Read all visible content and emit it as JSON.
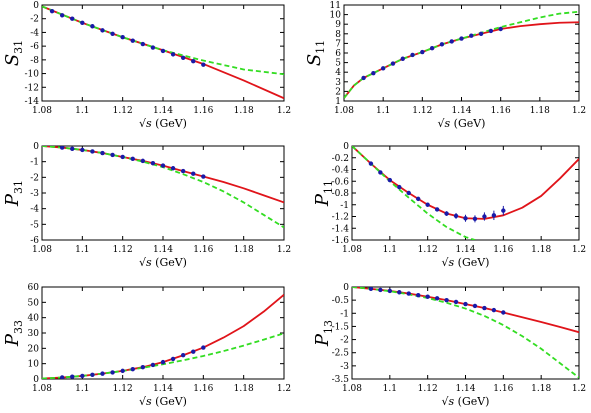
{
  "figure": {
    "xlabel_prefix": "√s",
    "xlabel_unit": "(GeV)",
    "series_styles": {
      "fit_solid": "#e0141a",
      "fit_dashed": "#33dd22",
      "data_points": "#1a1aa8"
    }
  },
  "chart_data": [
    {
      "type": "line",
      "panel": "S31",
      "ylabel_main": "S",
      "ylabel_sub": "31",
      "xlim": [
        1.08,
        1.2
      ],
      "ylim": [
        -14,
        0
      ],
      "xticks": [
        "1.08",
        "1.1",
        "1.12",
        "1.14",
        "1.16",
        "1.18",
        "1.2"
      ],
      "yticks": [
        "0",
        "-2",
        "-4",
        "-6",
        "-8",
        "-10",
        "-12",
        "-14"
      ],
      "series": [
        {
          "style": "solid",
          "color": "#e0141a",
          "x": [
            1.08,
            1.1,
            1.12,
            1.14,
            1.16,
            1.18,
            1.2
          ],
          "y": [
            -0.2,
            -2.6,
            -4.7,
            -6.6,
            -8.6,
            -11.0,
            -13.6
          ]
        },
        {
          "style": "dashed",
          "color": "#33dd22",
          "x": [
            1.08,
            1.1,
            1.12,
            1.14,
            1.16,
            1.18,
            1.2
          ],
          "y": [
            -0.2,
            -2.6,
            -4.7,
            -6.6,
            -8.1,
            -9.4,
            -10.1
          ]
        },
        {
          "style": "points",
          "color": "#1a1aa8",
          "x": [
            1.085,
            1.09,
            1.095,
            1.1,
            1.105,
            1.11,
            1.115,
            1.12,
            1.125,
            1.13,
            1.135,
            1.14,
            1.145,
            1.15,
            1.155,
            1.16
          ],
          "y": [
            -0.9,
            -1.5,
            -2.0,
            -2.6,
            -3.1,
            -3.7,
            -4.2,
            -4.7,
            -5.2,
            -5.7,
            -6.2,
            -6.7,
            -7.2,
            -7.7,
            -8.2,
            -8.7
          ],
          "err": [
            0.15,
            0.15,
            0.15,
            0.15,
            0.15,
            0.15,
            0.15,
            0.15,
            0.15,
            0.15,
            0.15,
            0.2,
            0.2,
            0.2,
            0.2,
            0.2
          ]
        }
      ]
    },
    {
      "type": "line",
      "panel": "S11",
      "ylabel_main": "S",
      "ylabel_sub": "11",
      "xlim": [
        1.08,
        1.2
      ],
      "ylim": [
        1,
        11
      ],
      "xticks": [
        "1.08",
        "1.1",
        "1.12",
        "1.14",
        "1.16",
        "1.18",
        "1.2"
      ],
      "yticks": [
        "1",
        "2",
        "3",
        "4",
        "5",
        "6",
        "7",
        "8",
        "9",
        "10",
        "11"
      ],
      "series": [
        {
          "style": "solid",
          "color": "#e0141a",
          "x": [
            1.08,
            1.085,
            1.09,
            1.1,
            1.11,
            1.12,
            1.13,
            1.14,
            1.15,
            1.16,
            1.17,
            1.18,
            1.19,
            1.2
          ],
          "y": [
            1.3,
            2.6,
            3.4,
            4.4,
            5.4,
            6.1,
            6.9,
            7.5,
            8.0,
            8.5,
            8.8,
            9.0,
            9.15,
            9.2
          ]
        },
        {
          "style": "dashed",
          "color": "#33dd22",
          "x": [
            1.08,
            1.085,
            1.09,
            1.1,
            1.11,
            1.12,
            1.13,
            1.14,
            1.15,
            1.16,
            1.17,
            1.18,
            1.19,
            1.2
          ],
          "y": [
            1.3,
            2.6,
            3.4,
            4.4,
            5.4,
            6.1,
            6.9,
            7.5,
            8.1,
            8.7,
            9.2,
            9.7,
            10.1,
            10.3
          ]
        },
        {
          "style": "points",
          "color": "#1a1aa8",
          "x": [
            1.09,
            1.095,
            1.1,
            1.105,
            1.11,
            1.115,
            1.12,
            1.125,
            1.13,
            1.135,
            1.14,
            1.145,
            1.15,
            1.155,
            1.16
          ],
          "y": [
            3.4,
            3.9,
            4.4,
            4.9,
            5.4,
            5.8,
            6.1,
            6.5,
            6.9,
            7.2,
            7.5,
            7.8,
            8.0,
            8.3,
            8.5
          ],
          "err": [
            0.12,
            0.12,
            0.12,
            0.12,
            0.12,
            0.12,
            0.12,
            0.12,
            0.12,
            0.12,
            0.12,
            0.12,
            0.12,
            0.12,
            0.12
          ]
        }
      ]
    },
    {
      "type": "line",
      "panel": "P31",
      "ylabel_main": "P",
      "ylabel_sub": "31",
      "xlim": [
        1.08,
        1.2
      ],
      "ylim": [
        -6,
        0
      ],
      "xticks": [
        "1.08",
        "1.1",
        "1.12",
        "1.14",
        "1.16",
        "1.18",
        "1.2"
      ],
      "yticks": [
        "0",
        "-1",
        "-2",
        "-3",
        "-4",
        "-5",
        "-6"
      ],
      "series": [
        {
          "style": "solid",
          "color": "#e0141a",
          "x": [
            1.08,
            1.09,
            1.1,
            1.11,
            1.12,
            1.13,
            1.14,
            1.15,
            1.16,
            1.17,
            1.18,
            1.19,
            1.2
          ],
          "y": [
            0.0,
            -0.1,
            -0.25,
            -0.45,
            -0.7,
            -0.95,
            -1.25,
            -1.6,
            -1.95,
            -2.3,
            -2.7,
            -3.15,
            -3.6
          ]
        },
        {
          "style": "dashed",
          "color": "#33dd22",
          "x": [
            1.08,
            1.09,
            1.1,
            1.11,
            1.12,
            1.13,
            1.14,
            1.15,
            1.16,
            1.17,
            1.18,
            1.19,
            1.2
          ],
          "y": [
            0.0,
            -0.1,
            -0.25,
            -0.45,
            -0.7,
            -1.0,
            -1.35,
            -1.8,
            -2.3,
            -2.9,
            -3.6,
            -4.4,
            -5.2
          ]
        },
        {
          "style": "points",
          "color": "#1a1aa8",
          "x": [
            1.09,
            1.095,
            1.1,
            1.105,
            1.11,
            1.115,
            1.12,
            1.125,
            1.13,
            1.135,
            1.14,
            1.145,
            1.15,
            1.155,
            1.16
          ],
          "y": [
            -0.1,
            -0.18,
            -0.25,
            -0.35,
            -0.45,
            -0.57,
            -0.7,
            -0.82,
            -0.95,
            -1.1,
            -1.25,
            -1.42,
            -1.6,
            -1.77,
            -1.95
          ],
          "err": [
            0.05,
            0.05,
            0.05,
            0.05,
            0.05,
            0.05,
            0.05,
            0.05,
            0.05,
            0.06,
            0.06,
            0.06,
            0.07,
            0.07,
            0.08
          ]
        }
      ]
    },
    {
      "type": "line",
      "panel": "P11",
      "ylabel_main": "P",
      "ylabel_sub": "11",
      "xlim": [
        1.08,
        1.2
      ],
      "ylim": [
        -1.6,
        0
      ],
      "xticks": [
        "1.08",
        "1.1",
        "1.12",
        "1.14",
        "1.16",
        "1.18",
        "1.2"
      ],
      "yticks": [
        "0",
        "-0.2",
        "-0.4",
        "-0.6",
        "-0.8",
        "-1",
        "-1.2",
        "-1.4",
        "-1.6"
      ],
      "series": [
        {
          "style": "solid",
          "color": "#e0141a",
          "x": [
            1.08,
            1.09,
            1.1,
            1.11,
            1.12,
            1.13,
            1.14,
            1.15,
            1.16,
            1.17,
            1.18,
            1.19,
            1.2
          ],
          "y": [
            0.0,
            -0.3,
            -0.58,
            -0.8,
            -1.0,
            -1.15,
            -1.23,
            -1.24,
            -1.18,
            -1.05,
            -0.85,
            -0.55,
            -0.22
          ]
        },
        {
          "style": "dashed",
          "color": "#33dd22",
          "x": [
            1.08,
            1.09,
            1.1,
            1.11,
            1.12,
            1.13,
            1.14,
            1.145
          ],
          "y": [
            0.0,
            -0.3,
            -0.6,
            -0.88,
            -1.15,
            -1.38,
            -1.55,
            -1.6
          ]
        },
        {
          "style": "points",
          "color": "#1a1aa8",
          "x": [
            1.09,
            1.095,
            1.1,
            1.105,
            1.11,
            1.115,
            1.12,
            1.125,
            1.13,
            1.135,
            1.14,
            1.145,
            1.15,
            1.155,
            1.16
          ],
          "y": [
            -0.3,
            -0.45,
            -0.58,
            -0.7,
            -0.8,
            -0.9,
            -1.0,
            -1.08,
            -1.15,
            -1.19,
            -1.23,
            -1.24,
            -1.2,
            -1.18,
            -1.1
          ],
          "err": [
            0.02,
            0.02,
            0.02,
            0.02,
            0.02,
            0.03,
            0.03,
            0.03,
            0.04,
            0.05,
            0.06,
            0.06,
            0.07,
            0.08,
            0.08
          ]
        }
      ]
    },
    {
      "type": "line",
      "panel": "P33",
      "ylabel_main": "P",
      "ylabel_sub": "33",
      "xlim": [
        1.08,
        1.2
      ],
      "ylim": [
        0,
        60
      ],
      "xticks": [
        "1.08",
        "1.1",
        "1.12",
        "1.14",
        "1.16",
        "1.18",
        "1.2"
      ],
      "yticks": [
        "0",
        "10",
        "20",
        "30",
        "40",
        "50",
        "60"
      ],
      "series": [
        {
          "style": "solid",
          "color": "#e0141a",
          "x": [
            1.08,
            1.09,
            1.1,
            1.11,
            1.12,
            1.13,
            1.14,
            1.15,
            1.16,
            1.17,
            1.18,
            1.19,
            1.2
          ],
          "y": [
            0.3,
            1.0,
            2.0,
            3.5,
            5.3,
            7.7,
            11.0,
            15.5,
            20.5,
            27.0,
            34.5,
            44.0,
            55.0
          ]
        },
        {
          "style": "dashed",
          "color": "#33dd22",
          "x": [
            1.08,
            1.09,
            1.1,
            1.11,
            1.12,
            1.13,
            1.14,
            1.15,
            1.16,
            1.17,
            1.18,
            1.19,
            1.2
          ],
          "y": [
            0.3,
            1.0,
            2.0,
            3.5,
            5.2,
            7.3,
            9.6,
            12.2,
            15.0,
            18.2,
            21.8,
            25.7,
            29.8
          ]
        },
        {
          "style": "points",
          "color": "#1a1aa8",
          "x": [
            1.09,
            1.095,
            1.1,
            1.105,
            1.11,
            1.115,
            1.12,
            1.125,
            1.13,
            1.135,
            1.14,
            1.145,
            1.15,
            1.155,
            1.16
          ],
          "y": [
            1.0,
            1.5,
            2.0,
            2.7,
            3.5,
            4.3,
            5.3,
            6.4,
            7.7,
            9.2,
            11.0,
            13.1,
            15.5,
            17.8,
            20.5
          ],
          "err": [
            0.3,
            0.3,
            0.3,
            0.3,
            0.3,
            0.3,
            0.4,
            0.4,
            0.4,
            0.5,
            0.5,
            0.6,
            0.7,
            0.8,
            0.9
          ]
        }
      ]
    },
    {
      "type": "line",
      "panel": "P13",
      "ylabel_main": "P",
      "ylabel_sub": "13",
      "xlim": [
        1.08,
        1.2
      ],
      "ylim": [
        -3.5,
        0
      ],
      "xticks": [
        "1.08",
        "1.1",
        "1.12",
        "1.14",
        "1.16",
        "1.18",
        "1.2"
      ],
      "yticks": [
        "0",
        "-0.5",
        "-1",
        "-1.5",
        "-2",
        "-2.5",
        "-3",
        "-3.5"
      ],
      "series": [
        {
          "style": "solid",
          "color": "#e0141a",
          "x": [
            1.08,
            1.09,
            1.1,
            1.11,
            1.12,
            1.13,
            1.14,
            1.15,
            1.16,
            1.17,
            1.18,
            1.19,
            1.2
          ],
          "y": [
            0.0,
            -0.07,
            -0.15,
            -0.25,
            -0.37,
            -0.5,
            -0.65,
            -0.8,
            -0.97,
            -1.15,
            -1.33,
            -1.52,
            -1.72
          ]
        },
        {
          "style": "dashed",
          "color": "#33dd22",
          "x": [
            1.08,
            1.09,
            1.1,
            1.11,
            1.12,
            1.13,
            1.14,
            1.15,
            1.16,
            1.17,
            1.18,
            1.19,
            1.2
          ],
          "y": [
            0.0,
            -0.07,
            -0.16,
            -0.28,
            -0.42,
            -0.6,
            -0.82,
            -1.1,
            -1.45,
            -1.87,
            -2.35,
            -2.9,
            -3.45
          ]
        },
        {
          "style": "points",
          "color": "#1a1aa8",
          "x": [
            1.09,
            1.095,
            1.1,
            1.105,
            1.11,
            1.115,
            1.12,
            1.125,
            1.13,
            1.135,
            1.14,
            1.145,
            1.15,
            1.155,
            1.16
          ],
          "y": [
            -0.07,
            -0.11,
            -0.15,
            -0.2,
            -0.25,
            -0.31,
            -0.37,
            -0.43,
            -0.5,
            -0.57,
            -0.65,
            -0.72,
            -0.8,
            -0.88,
            -0.97
          ],
          "err": [
            0.02,
            0.02,
            0.02,
            0.02,
            0.02,
            0.02,
            0.03,
            0.03,
            0.03,
            0.03,
            0.04,
            0.04,
            0.04,
            0.05,
            0.05
          ]
        }
      ]
    }
  ]
}
